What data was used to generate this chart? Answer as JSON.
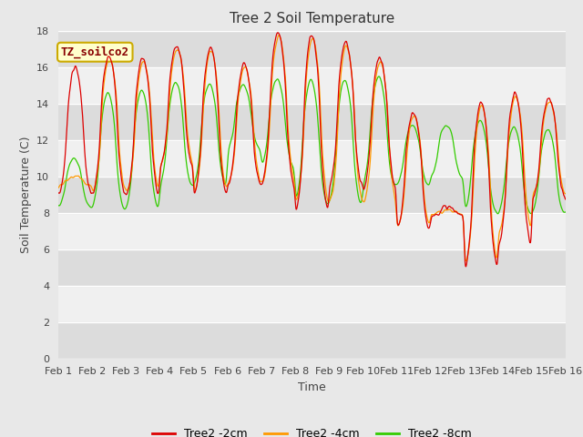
{
  "title": "Tree 2 Soil Temperature",
  "xlabel": "Time",
  "ylabel": "Soil Temperature (C)",
  "ylim": [
    0,
    18
  ],
  "yticks": [
    0,
    2,
    4,
    6,
    8,
    10,
    12,
    14,
    16,
    18
  ],
  "x_labels": [
    "Feb 1",
    "Feb 2",
    "Feb 3",
    "Feb 4",
    "Feb 5",
    "Feb 6",
    "Feb 7",
    "Feb 8",
    "Feb 9",
    "Feb 10",
    "Feb 11",
    "Feb 12",
    "Feb 13",
    "Feb 14",
    "Feb 15",
    "Feb 16"
  ],
  "annotation_text": "TZ_soilco2",
  "annotation_bg": "#ffffcc",
  "annotation_border": "#ccaa00",
  "line_colors": [
    "#dd0000",
    "#ff9900",
    "#33cc00"
  ],
  "line_labels": [
    "Tree2 -2cm",
    "Tree2 -4cm",
    "Tree2 -8cm"
  ],
  "background_color": "#e8e8e8",
  "plot_bg_light": "#f0f0f0",
  "plot_bg_dark": "#dcdcdc",
  "title_fontsize": 11,
  "label_fontsize": 9,
  "tick_fontsize": 8,
  "legend_fontsize": 9,
  "n_days": 15,
  "pts_per_day": 96,
  "day_peaks_red": [
    16.0,
    16.7,
    16.5,
    17.2,
    17.1,
    16.2,
    17.9,
    17.8,
    17.4,
    16.5,
    13.5,
    8.3,
    14.1,
    14.6,
    14.3
  ],
  "day_troughs_red": [
    9.0,
    9.0,
    9.0,
    10.5,
    9.0,
    9.5,
    9.5,
    8.1,
    9.5,
    9.3,
    7.1,
    7.8,
    5.0,
    6.2,
    8.8
  ],
  "day_peaks_orange": [
    10.0,
    16.5,
    16.3,
    17.0,
    16.9,
    16.0,
    17.7,
    17.6,
    17.2,
    16.3,
    13.3,
    8.1,
    13.9,
    14.4,
    14.1
  ],
  "day_troughs_orange": [
    9.5,
    9.2,
    9.2,
    10.7,
    9.2,
    9.7,
    9.7,
    8.6,
    8.6,
    8.6,
    7.2,
    7.9,
    5.2,
    7.0,
    9.0
  ],
  "day_peaks_green": [
    11.0,
    14.6,
    14.8,
    15.2,
    15.1,
    15.0,
    15.3,
    15.3,
    15.3,
    15.5,
    12.8,
    12.8,
    13.1,
    12.7,
    12.6
  ],
  "day_troughs_green": [
    8.3,
    8.2,
    8.2,
    9.5,
    9.5,
    11.5,
    10.5,
    8.5,
    8.5,
    9.5,
    9.5,
    9.9,
    8.0,
    8.0,
    8.0
  ]
}
